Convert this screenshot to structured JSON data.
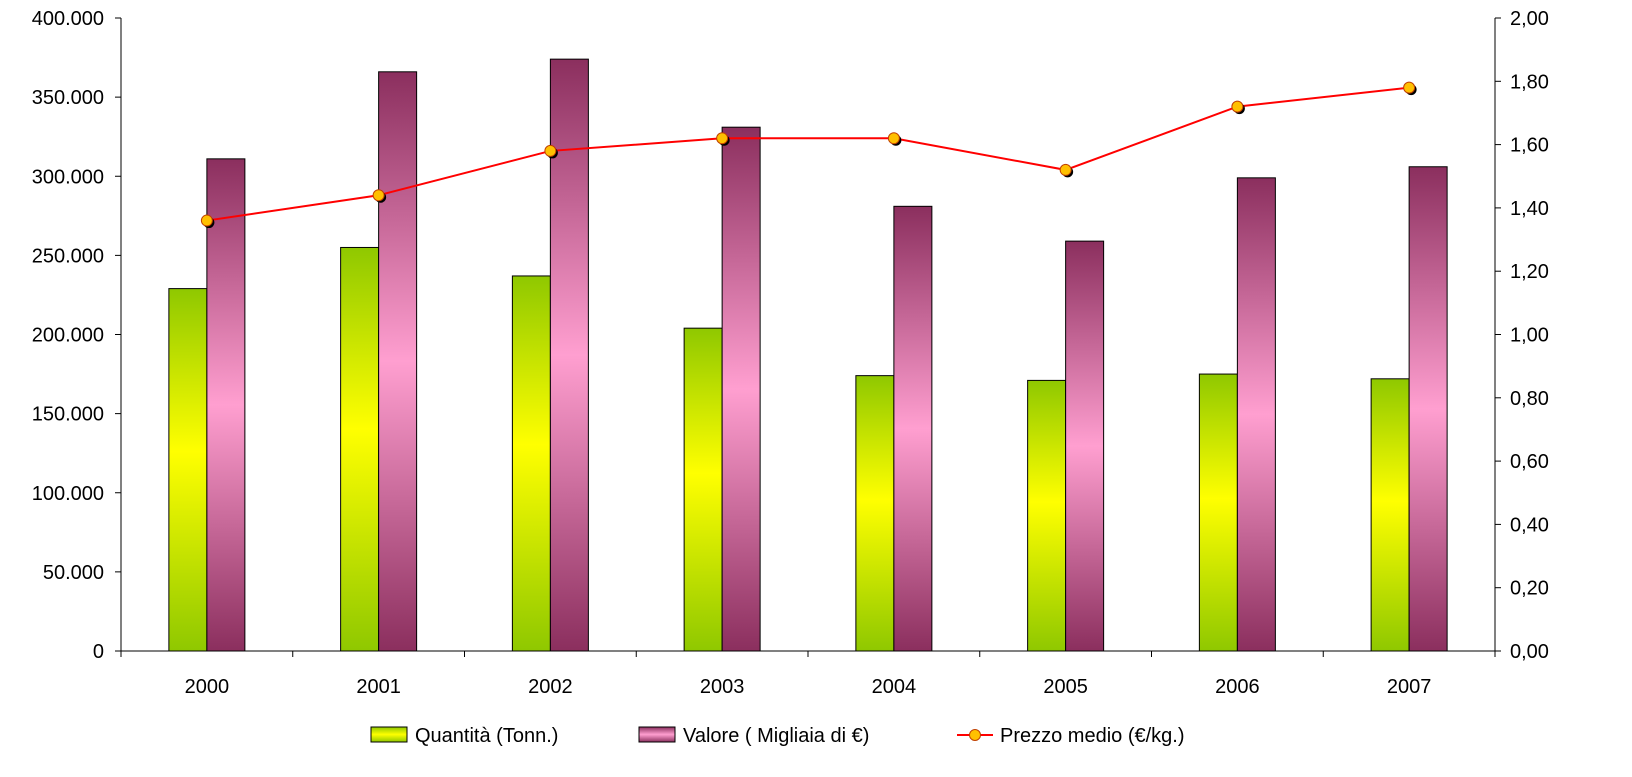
{
  "chart_data": {
    "type": "bar",
    "categories": [
      "2000",
      "2001",
      "2002",
      "2003",
      "2004",
      "2005",
      "2006",
      "2007"
    ],
    "series": [
      {
        "name": "Quantità (Tonn.)",
        "kind": "bar",
        "axis": "left",
        "values": [
          229000,
          255000,
          237000,
          204000,
          174000,
          171000,
          175000,
          172000
        ],
        "colors": {
          "top": "#8fc800",
          "middle": "#ffff00",
          "bottom": "#8fc800"
        }
      },
      {
        "name": "Valore ( Migliaia di €)",
        "kind": "bar",
        "axis": "left",
        "values": [
          311000,
          366000,
          374000,
          331000,
          281000,
          259000,
          299000,
          306000
        ],
        "colors": {
          "edge": "#8b2f5e",
          "middle": "#ff9fd0"
        }
      },
      {
        "name": "Prezzo medio (€/kg.)",
        "kind": "line",
        "axis": "right",
        "values": [
          1.36,
          1.44,
          1.58,
          1.62,
          1.62,
          1.52,
          1.72,
          1.78
        ],
        "colors": {
          "line": "#ff0000",
          "marker": "#ffc000"
        }
      }
    ],
    "y_left": {
      "min": 0,
      "max": 400000,
      "tick_labels": [
        "0",
        "50.000",
        "100.000",
        "150.000",
        "200.000",
        "250.000",
        "300.000",
        "350.000",
        "400.000"
      ]
    },
    "y_right": {
      "min": 0,
      "max": 2.0,
      "tick_labels": [
        "0,00",
        "0,20",
        "0,40",
        "0,60",
        "0,80",
        "1,00",
        "1,20",
        "1,40",
        "1,60",
        "1,80",
        "2,00"
      ]
    },
    "grid": false,
    "legend_position": "bottom",
    "title": "",
    "xlabel": "",
    "ylabel": ""
  }
}
